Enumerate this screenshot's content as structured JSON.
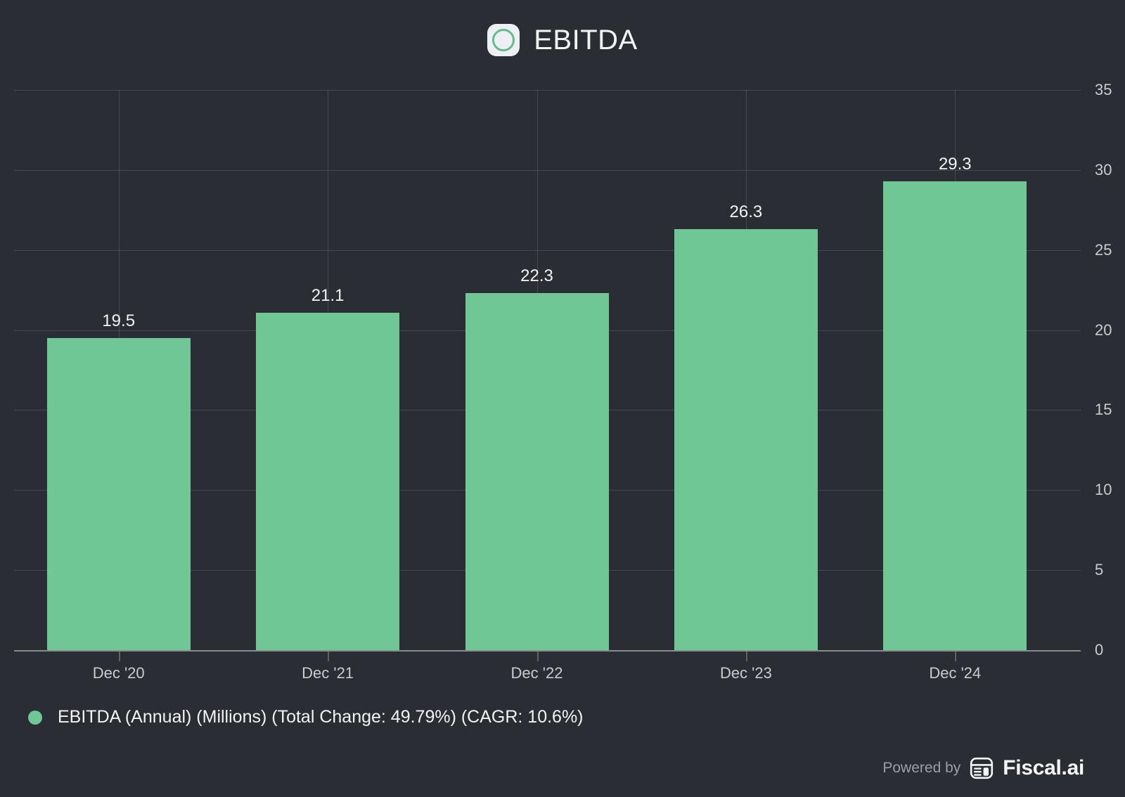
{
  "header": {
    "title": "EBITDA"
  },
  "chart_data": {
    "type": "bar",
    "title": "EBITDA",
    "categories": [
      "Dec '20",
      "Dec '21",
      "Dec '22",
      "Dec '23",
      "Dec '24"
    ],
    "values": [
      19.5,
      21.1,
      22.3,
      26.3,
      29.3
    ],
    "bar_labels": [
      "19.5",
      "21.1",
      "22.3",
      "26.3",
      "29.3"
    ],
    "series": [
      {
        "name": "EBITDA (Annual) (Millions)",
        "values": [
          19.5,
          21.1,
          22.3,
          26.3,
          29.3
        ]
      }
    ],
    "ylabel": "",
    "xlabel": "",
    "ylim": [
      0,
      35
    ],
    "yticks": [
      0,
      5,
      10,
      15,
      20,
      25,
      30,
      35
    ],
    "grid": true,
    "legend_position": "bottom-left",
    "total_change": "49.79%",
    "cagr": "10.6%"
  },
  "legend": {
    "label": "EBITDA (Annual) (Millions) (Total Change: 49.79%) (CAGR: 10.6%)"
  },
  "footer": {
    "powered_by": "Powered by",
    "brand": "Fiscal.ai"
  },
  "colors": {
    "background": "#2b2d35",
    "bar": "#6fc795",
    "accent_ring": "#62bd88",
    "grid": "rgba(255,255,255,0.13)",
    "axis": "rgba(255,255,255,0.45)",
    "tick_label": "#c9cbd1",
    "value_label": "#f2f3f5",
    "legend_text": "#f2f3f5",
    "powered_by": "#9b9ea6",
    "brand": "#f5f6f8"
  }
}
